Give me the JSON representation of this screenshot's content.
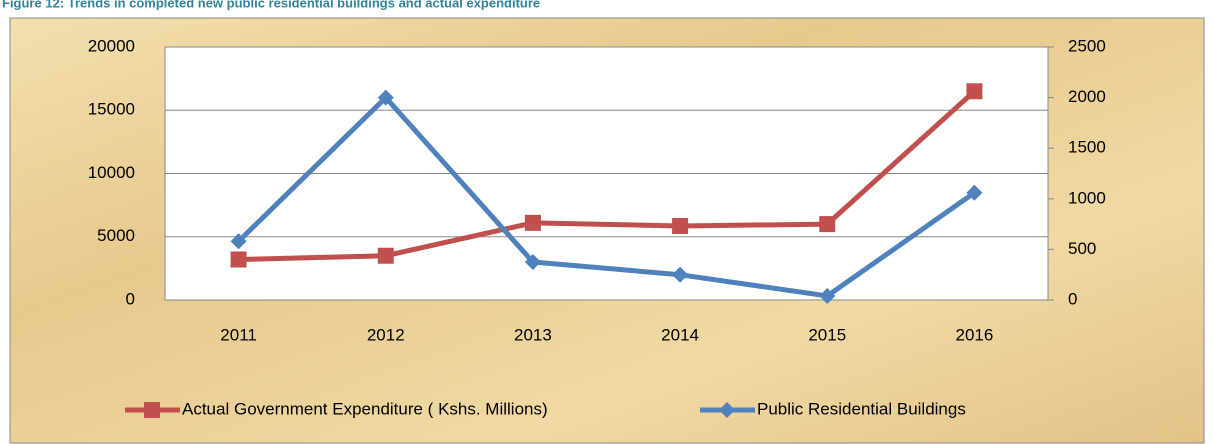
{
  "chart_data": {
    "type": "line",
    "title": "Figure 12: Trends in completed new public residential buildings and actual expenditure",
    "categories": [
      "2011",
      "2012",
      "2013",
      "2014",
      "2015",
      "2016"
    ],
    "series": [
      {
        "name": "Actual Government Expenditure ( Kshs. Millions)",
        "color": "#c0504d",
        "marker": "square",
        "values": [
          3200,
          3500,
          6100,
          5850,
          6000,
          16500
        ]
      },
      {
        "name": "Public Residential Buildings",
        "color": "#4f81bd",
        "marker": "diamond",
        "axis": "y2",
        "values": [
          580,
          2000,
          375,
          250,
          40,
          1060
        ]
      }
    ],
    "ylim": [
      0,
      20000
    ],
    "yticks": [
      0,
      5000,
      10000,
      15000,
      20000
    ],
    "y2lim": [
      0,
      2500
    ],
    "y2ticks": [
      0,
      500,
      1000,
      1500,
      2000,
      2500
    ],
    "grid": true,
    "legend": "bottom"
  }
}
